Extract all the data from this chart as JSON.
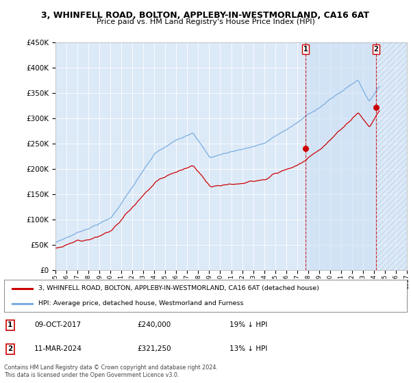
{
  "title": "3, WHINFELL ROAD, BOLTON, APPLEBY-IN-WESTMORLAND, CA16 6AT",
  "subtitle": "Price paid vs. HM Land Registry's House Price Index (HPI)",
  "legend_property": "3, WHINFELL ROAD, BOLTON, APPLEBY-IN-WESTMORLAND, CA16 6AT (detached house)",
  "legend_hpi": "HPI: Average price, detached house, Westmorland and Furness",
  "footer": "Contains HM Land Registry data © Crown copyright and database right 2024.\nThis data is licensed under the Open Government Licence v3.0.",
  "point1_date": "09-OCT-2017",
  "point1_price": "£240,000",
  "point1_pct": "19% ↓ HPI",
  "point1_year": 2017.77,
  "point1_value": 240000,
  "point2_date": "11-MAR-2024",
  "point2_price": "£321,250",
  "point2_pct": "13% ↓ HPI",
  "point2_year": 2024.19,
  "point2_value": 321250,
  "hpi_color": "#7aade0",
  "property_color": "#cc0000",
  "dashed_color": "#cc0000",
  "background_plot": "#dce9f7",
  "background_fig": "#ffffff",
  "ylim": [
    0,
    450000
  ],
  "xlim_start": 1995,
  "xlim_end": 2027
}
